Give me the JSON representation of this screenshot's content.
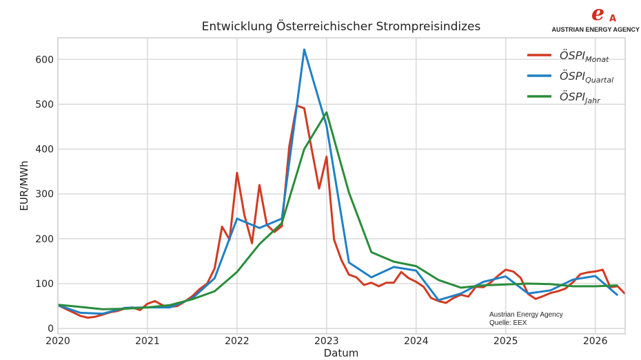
{
  "chart_data": {
    "type": "line",
    "title": "Entwicklung Österreichischer Strompreisindizes",
    "xlabel": "Datum",
    "ylabel": "EUR/MWh",
    "ylim": [
      -12,
      648
    ],
    "xlim": [
      "2020-01",
      "2026-05"
    ],
    "yticks": [
      0,
      100,
      200,
      300,
      400,
      500,
      600
    ],
    "xticks": [
      "2020",
      "2021",
      "2022",
      "2023",
      "2024",
      "2025",
      "2026"
    ],
    "grid": true,
    "legend_position": "top-right",
    "annotation": [
      "Austrian Energy Agency",
      "Quelle: EEX"
    ],
    "series": [
      {
        "name": "ÖSPI",
        "name_sub": "Monat",
        "color": "#d13a22",
        "x": [
          "2020-01",
          "2020-02",
          "2020-03",
          "2020-04",
          "2020-05",
          "2020-06",
          "2020-07",
          "2020-08",
          "2020-09",
          "2020-10",
          "2020-11",
          "2020-12",
          "2021-01",
          "2021-02",
          "2021-03",
          "2021-04",
          "2021-05",
          "2021-06",
          "2021-07",
          "2021-08",
          "2021-09",
          "2021-10",
          "2021-11",
          "2021-12",
          "2022-01",
          "2022-02",
          "2022-03",
          "2022-04",
          "2022-05",
          "2022-06",
          "2022-07",
          "2022-08",
          "2022-09",
          "2022-10",
          "2022-11",
          "2022-12",
          "2023-01",
          "2023-02",
          "2023-03",
          "2023-04",
          "2023-05",
          "2023-06",
          "2023-07",
          "2023-08",
          "2023-09",
          "2023-10",
          "2023-11",
          "2023-12",
          "2024-01",
          "2024-02",
          "2024-03",
          "2024-04",
          "2024-05",
          "2024-06",
          "2024-07",
          "2024-08",
          "2024-09",
          "2024-10",
          "2024-11",
          "2024-12",
          "2025-01",
          "2025-02",
          "2025-03",
          "2025-04",
          "2025-05",
          "2025-06",
          "2025-07",
          "2025-08",
          "2025-09",
          "2025-10",
          "2025-11",
          "2025-12",
          "2026-01",
          "2026-02",
          "2026-03",
          "2026-04",
          "2026-05"
        ],
        "values": [
          52,
          44,
          36,
          28,
          24,
          26,
          31,
          36,
          39,
          45,
          47,
          41,
          55,
          61,
          52,
          48,
          50,
          60,
          72,
          88,
          100,
          134,
          227,
          198,
          347,
          252,
          190,
          320,
          231,
          215,
          228,
          406,
          497,
          491,
          400,
          312,
          383,
          198,
          152,
          120,
          114,
          97,
          102,
          94,
          102,
          102,
          126,
          112,
          104,
          93,
          68,
          61,
          57,
          68,
          75,
          71,
          93,
          92,
          103,
          118,
          131,
          127,
          113,
          77,
          66,
          72,
          79,
          83,
          89,
          103,
          121,
          125,
          127,
          131,
          92,
          94,
          77
        ]
      },
      {
        "name": "ÖSPI",
        "name_sub": "Quartal",
        "color": "#1f80c4",
        "x": [
          "2020-01",
          "2020-04",
          "2020-07",
          "2020-10",
          "2021-01",
          "2021-04",
          "2021-07",
          "2021-10",
          "2022-01",
          "2022-04",
          "2022-07",
          "2022-10",
          "2023-01",
          "2023-04",
          "2023-07",
          "2023-10",
          "2024-01",
          "2024-04",
          "2024-07",
          "2024-10",
          "2025-01",
          "2025-04",
          "2025-07",
          "2025-10",
          "2026-01",
          "2026-04"
        ],
        "values": [
          52,
          35,
          33,
          46,
          47,
          47,
          67,
          112,
          245,
          224,
          245,
          622,
          452,
          147,
          114,
          137,
          129,
          63,
          78,
          104,
          116,
          78,
          85,
          109,
          117,
          74
        ]
      },
      {
        "name": "ÖSPI",
        "name_sub": "Jahr",
        "color": "#2a8c3a",
        "x": [
          "2020-01",
          "2020-04",
          "2020-07",
          "2020-10",
          "2021-01",
          "2021-04",
          "2021-07",
          "2021-10",
          "2022-01",
          "2022-04",
          "2022-07",
          "2022-10",
          "2023-01",
          "2023-04",
          "2023-07",
          "2023-10",
          "2024-01",
          "2024-04",
          "2024-07",
          "2024-10",
          "2025-01",
          "2025-04",
          "2025-07",
          "2025-10",
          "2026-01",
          "2026-04"
        ],
        "values": [
          53,
          48,
          43,
          44,
          47,
          52,
          65,
          83,
          126,
          188,
          235,
          400,
          482,
          303,
          170,
          149,
          139,
          108,
          91,
          96,
          98,
          100,
          99,
          94,
          94,
          96
        ]
      }
    ]
  },
  "logo": {
    "text": "AUSTRIAN ENERGY AGENCY",
    "mark": "eA",
    "color": "#d42a1a"
  }
}
